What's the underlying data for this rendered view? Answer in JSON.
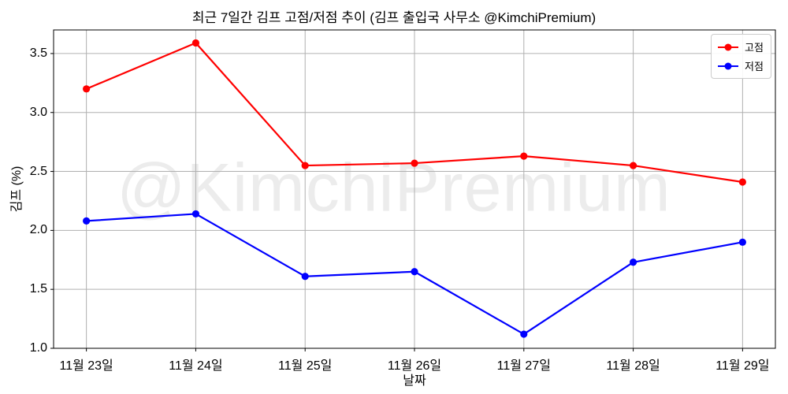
{
  "title": "최근 7일간 김프 고점/저점 추이 (김프 출입국 사무소 @KimchiPremium)",
  "watermark": "@KimchiPremium",
  "chart_data": {
    "type": "line",
    "title": "최근 7일간 김프 고점/저점 추이 (김프 출입국 사무소 @KimchiPremium)",
    "xlabel": "날짜",
    "ylabel": "김프 (%)",
    "categories": [
      "11월 23일",
      "11월 24일",
      "11월 25일",
      "11월 26일",
      "11월 27일",
      "11월 28일",
      "11월 29일"
    ],
    "series": [
      {
        "name": "고점",
        "color": "#ff0000",
        "marker": "circle",
        "values": [
          3.2,
          3.59,
          2.55,
          2.57,
          2.63,
          2.55,
          2.41
        ]
      },
      {
        "name": "저점",
        "color": "#0000ff",
        "marker": "circle",
        "values": [
          2.08,
          2.14,
          1.61,
          1.65,
          1.12,
          1.73,
          1.9
        ]
      }
    ],
    "ylim": [
      1.0,
      3.7
    ],
    "yticks": [
      1.0,
      1.5,
      2.0,
      2.5,
      3.0,
      3.5
    ],
    "grid": true,
    "legend_position": "upper right"
  },
  "colors": {
    "background": "#ffffff",
    "grid": "#b0b0b0",
    "spine": "#000000",
    "text": "#000000",
    "watermark": "#ececec",
    "legend_border": "#cccccc"
  }
}
